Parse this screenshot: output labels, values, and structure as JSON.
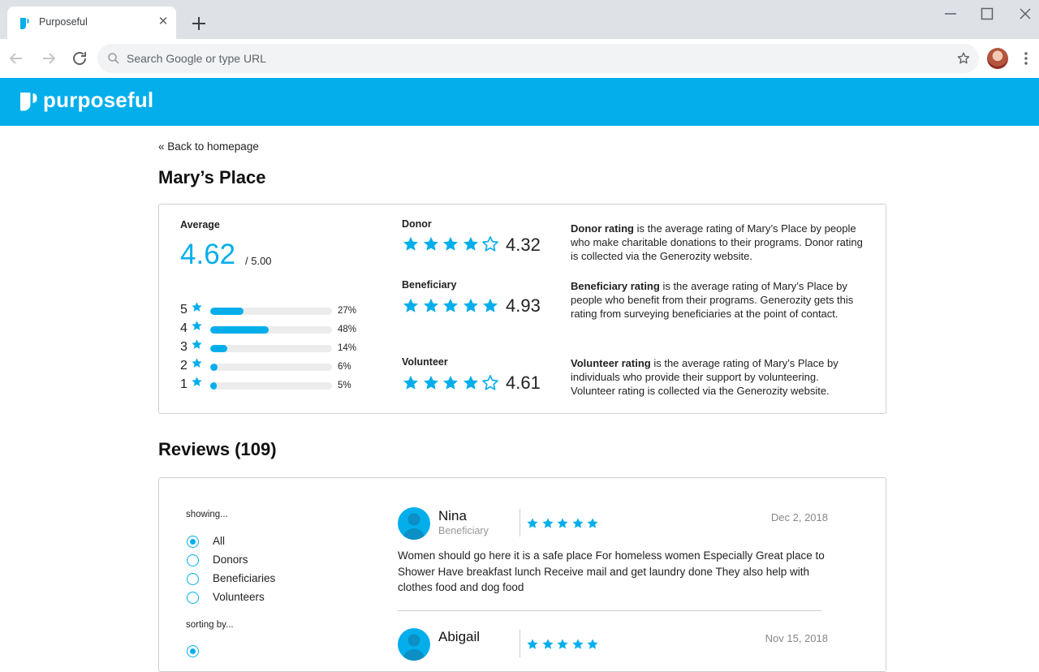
{
  "browser": {
    "tab_title": "Purposeful",
    "new_tab_icon": "plus-icon",
    "omnibox_placeholder": "Search Google or type URL"
  },
  "site": {
    "logo_text": "purposeful",
    "brand_color": "#03aeeb"
  },
  "page": {
    "back_link": "« Back to homepage",
    "title": "Mary’s Place"
  },
  "ratings": {
    "average_label": "Average",
    "average_value": "4.62",
    "average_out_of": "/ 5.00",
    "distribution": [
      {
        "stars": "5",
        "percent_label": "27%",
        "percent": 27
      },
      {
        "stars": "4",
        "percent_label": "48%",
        "percent": 48
      },
      {
        "stars": "3",
        "percent_label": "14%",
        "percent": 14
      },
      {
        "stars": "2",
        "percent_label": "6%",
        "percent": 6
      },
      {
        "stars": "1",
        "percent_label": "5%",
        "percent": 5
      }
    ],
    "categories": [
      {
        "label": "Donor",
        "value": "4.32",
        "filled_stars": 4,
        "desc_bold": "Donor rating",
        "desc_rest": " is the average rating of Mary’s Place by people who make charitable donations to their programs. Donor rating is collected via the Generozity website."
      },
      {
        "label": "Beneficiary",
        "value": "4.93",
        "filled_stars": 5,
        "desc_bold": "Beneficiary rating",
        "desc_rest": " is the average rating of Mary’s Place by people who benefit from their programs. Generozity gets this rating from surveying beneficiaries at the point of contact."
      },
      {
        "label": "Volunteer",
        "value": "4.61",
        "filled_stars": 4,
        "desc_bold": "Volunteer rating",
        "desc_rest": " is the average rating of Mary’s Place by individuals who provide their support by volunteering. Volunteer rating is collected via the Generozity website."
      }
    ]
  },
  "reviews": {
    "title": "Reviews (109)",
    "showing_label": "showing...",
    "filters": [
      {
        "label": "All",
        "checked": true
      },
      {
        "label": "Donors",
        "checked": false
      },
      {
        "label": "Beneficiaries",
        "checked": false
      },
      {
        "label": "Volunteers",
        "checked": false
      }
    ],
    "sorting_label": "sorting by...",
    "items": [
      {
        "name": "Nina",
        "role": "Beneficiary",
        "stars": 5,
        "date": "Dec 2, 2018",
        "text": "Women should go here it is a safe place For homeless women Especially Great place to Shower Have breakfast lunch Receive mail and get laundry done They also help with clothes food and dog food"
      },
      {
        "name": "Abigail",
        "role": "",
        "stars": 5,
        "date": "Nov 15, 2018",
        "text": ""
      }
    ]
  }
}
